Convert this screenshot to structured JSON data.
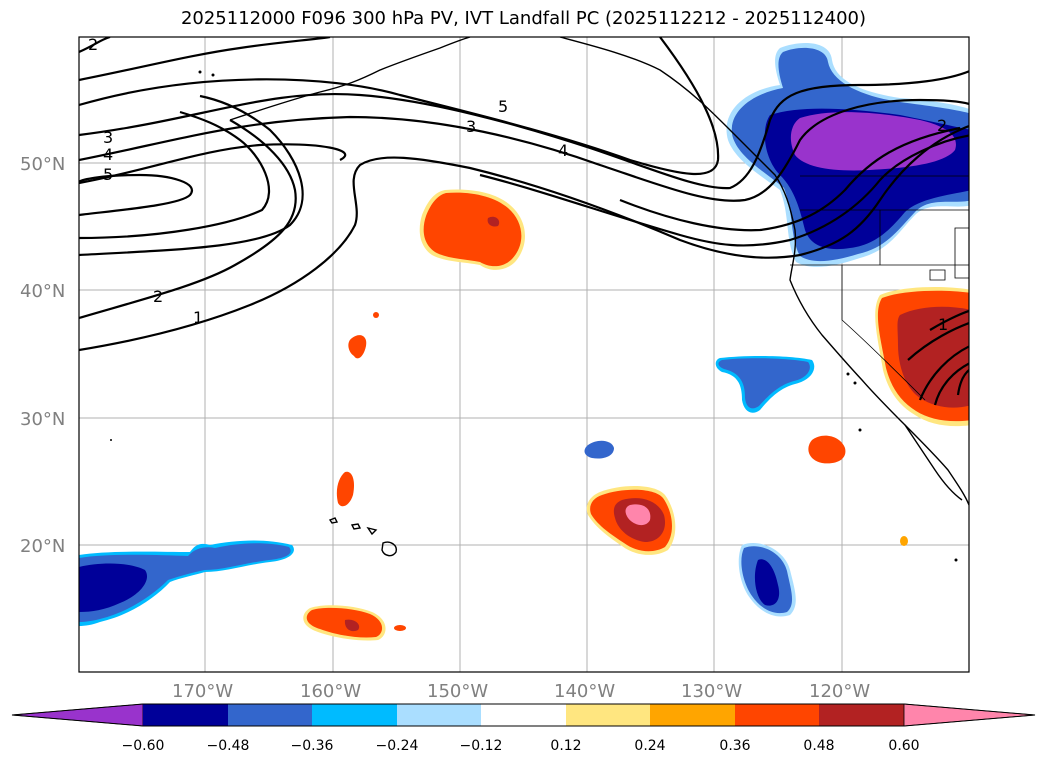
{
  "title": "2025112000 F096 300 hPa PV, IVT Landfall PC (2025112212 - 2025112400)",
  "map": {
    "lat_labels": [
      "50°N",
      "40°N",
      "30°N",
      "20°N"
    ],
    "lon_labels": [
      "170°W",
      "160°W",
      "150°W",
      "140°W",
      "130°W",
      "120°W"
    ]
  },
  "contour_labels": [
    "2",
    "3",
    "4",
    "5",
    "2",
    "1",
    "5",
    "3",
    "4",
    "2",
    "1"
  ],
  "colorbar": {
    "ticks": [
      "−0.60",
      "−0.48",
      "−0.36",
      "−0.24",
      "−0.12",
      "0.12",
      "0.24",
      "0.36",
      "0.48",
      "0.60"
    ],
    "colors": [
      "#9933cc",
      "#000099",
      "#3366cc",
      "#00bbff",
      "#aadeff",
      "#ffffff",
      "#ffe680",
      "#ffa500",
      "#ff4500",
      "#b22222",
      "#ff85ab"
    ]
  }
}
